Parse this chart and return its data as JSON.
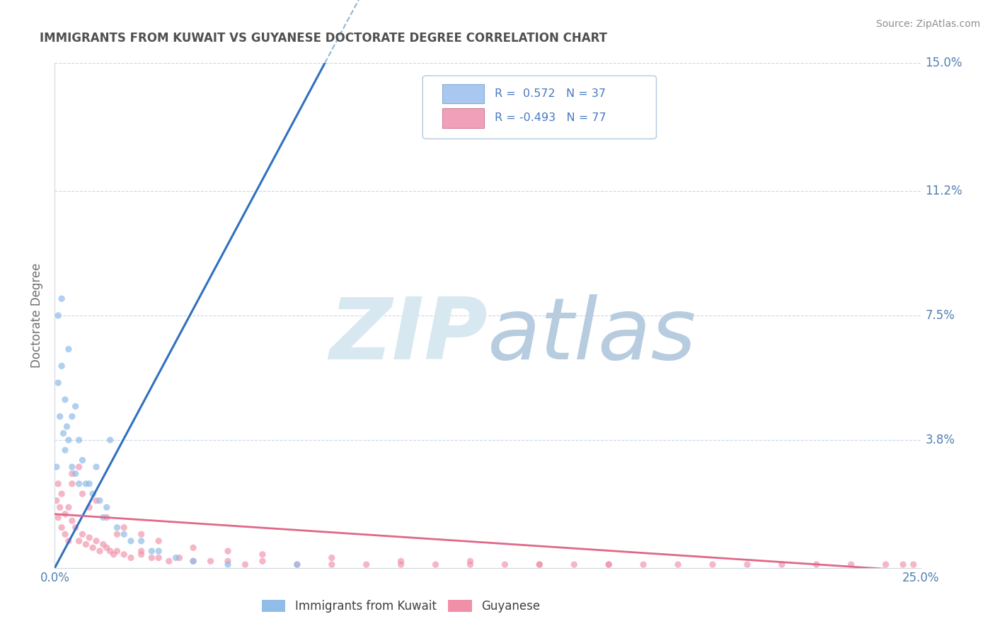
{
  "title": "IMMIGRANTS FROM KUWAIT VS GUYANESE DOCTORATE DEGREE CORRELATION CHART",
  "source": "Source: ZipAtlas.com",
  "ylabel": "Doctorate Degree",
  "xlim": [
    0.0,
    0.25
  ],
  "ylim": [
    0.0,
    0.15
  ],
  "xticks": [
    0.0,
    0.25
  ],
  "xticklabels": [
    "0.0%",
    "25.0%"
  ],
  "yticks": [
    0.0,
    0.038,
    0.075,
    0.112,
    0.15
  ],
  "yticklabels": [
    "",
    "3.8%",
    "7.5%",
    "11.2%",
    "15.0%"
  ],
  "series_kuwait": {
    "color": "#90bce8",
    "size": 45,
    "alpha": 0.7,
    "x": [
      0.0005,
      0.001,
      0.001,
      0.0015,
      0.002,
      0.002,
      0.0025,
      0.003,
      0.003,
      0.0035,
      0.004,
      0.004,
      0.005,
      0.005,
      0.006,
      0.006,
      0.007,
      0.007,
      0.008,
      0.009,
      0.01,
      0.011,
      0.012,
      0.013,
      0.014,
      0.015,
      0.016,
      0.018,
      0.02,
      0.022,
      0.025,
      0.028,
      0.03,
      0.035,
      0.04,
      0.05,
      0.07
    ],
    "y": [
      0.03,
      0.055,
      0.075,
      0.045,
      0.06,
      0.08,
      0.04,
      0.05,
      0.035,
      0.042,
      0.038,
      0.065,
      0.045,
      0.03,
      0.048,
      0.028,
      0.038,
      0.025,
      0.032,
      0.025,
      0.025,
      0.022,
      0.03,
      0.02,
      0.015,
      0.018,
      0.038,
      0.012,
      0.01,
      0.008,
      0.008,
      0.005,
      0.005,
      0.003,
      0.002,
      0.001,
      0.001
    ]
  },
  "series_guyanese": {
    "color": "#f090a8",
    "size": 45,
    "alpha": 0.65,
    "x": [
      0.0005,
      0.001,
      0.001,
      0.0015,
      0.002,
      0.002,
      0.003,
      0.003,
      0.004,
      0.004,
      0.005,
      0.005,
      0.006,
      0.007,
      0.008,
      0.009,
      0.01,
      0.011,
      0.012,
      0.013,
      0.014,
      0.015,
      0.016,
      0.017,
      0.018,
      0.02,
      0.022,
      0.025,
      0.028,
      0.03,
      0.033,
      0.036,
      0.04,
      0.045,
      0.05,
      0.055,
      0.06,
      0.07,
      0.08,
      0.09,
      0.1,
      0.11,
      0.12,
      0.13,
      0.14,
      0.15,
      0.16,
      0.17,
      0.19,
      0.21,
      0.23,
      0.245,
      0.248,
      0.005,
      0.008,
      0.01,
      0.015,
      0.02,
      0.025,
      0.03,
      0.04,
      0.05,
      0.06,
      0.08,
      0.1,
      0.12,
      0.14,
      0.16,
      0.18,
      0.2,
      0.22,
      0.24,
      0.007,
      0.012,
      0.018,
      0.025
    ],
    "y": [
      0.02,
      0.015,
      0.025,
      0.018,
      0.022,
      0.012,
      0.016,
      0.01,
      0.018,
      0.008,
      0.014,
      0.025,
      0.012,
      0.008,
      0.01,
      0.007,
      0.009,
      0.006,
      0.008,
      0.005,
      0.007,
      0.006,
      0.005,
      0.004,
      0.005,
      0.004,
      0.003,
      0.004,
      0.003,
      0.003,
      0.002,
      0.003,
      0.002,
      0.002,
      0.002,
      0.001,
      0.002,
      0.001,
      0.001,
      0.001,
      0.001,
      0.001,
      0.001,
      0.001,
      0.001,
      0.001,
      0.001,
      0.001,
      0.001,
      0.001,
      0.001,
      0.001,
      0.001,
      0.028,
      0.022,
      0.018,
      0.015,
      0.012,
      0.01,
      0.008,
      0.006,
      0.005,
      0.004,
      0.003,
      0.002,
      0.002,
      0.001,
      0.001,
      0.001,
      0.001,
      0.001,
      0.001,
      0.03,
      0.02,
      0.01,
      0.005
    ]
  },
  "trend_kuwait_solid": {
    "x": [
      0.0,
      0.078
    ],
    "y": [
      0.0,
      0.15
    ],
    "color": "#3070c0",
    "linewidth": 2.2
  },
  "trend_kuwait_dashed": {
    "x": [
      0.078,
      0.13
    ],
    "y": [
      0.15,
      0.25
    ],
    "color": "#90b8d8",
    "linewidth": 1.5,
    "linestyle": "--"
  },
  "trend_guyanese": {
    "x": [
      0.0,
      0.25
    ],
    "y": [
      0.016,
      -0.001
    ],
    "color": "#e06888",
    "linewidth": 2.0
  },
  "watermark_zip": "ZIP",
  "watermark_atlas": "atlas",
  "watermark_color_zip": "#d8e8f0",
  "watermark_color_atlas": "#b8cce0",
  "background_color": "#ffffff",
  "grid_color": "#c8d8e8",
  "title_color": "#505050",
  "tick_color": "#5080b0"
}
